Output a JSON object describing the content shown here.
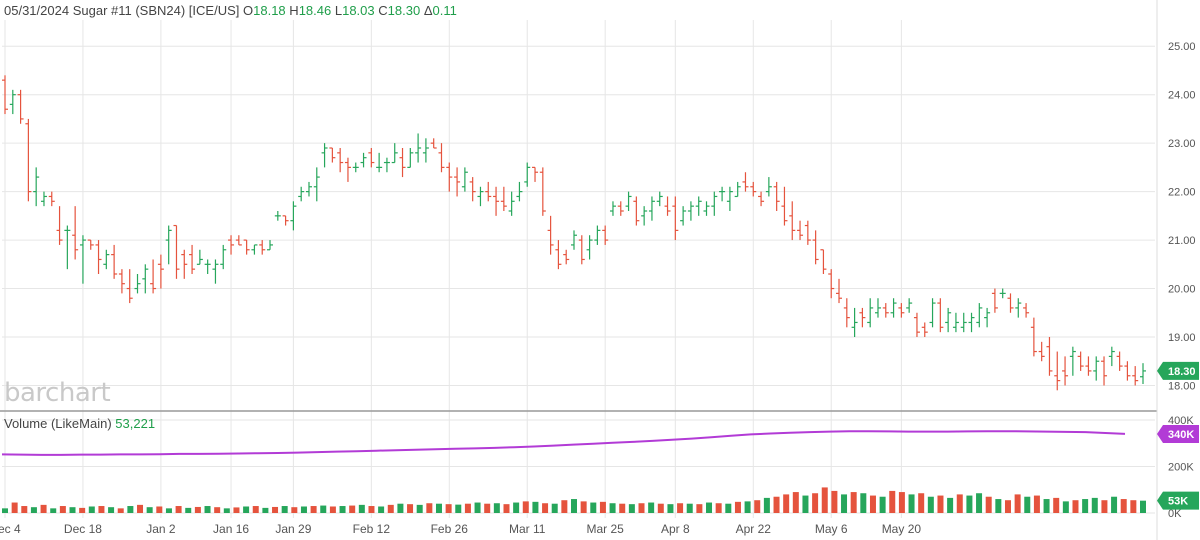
{
  "header": {
    "date": "05/31/2024",
    "symbol": "Sugar #11 (SBN24) [ICE/US]",
    "open_label": "O",
    "open": "18.18",
    "high_label": "H",
    "high": "18.46",
    "low_label": "L",
    "low": "18.03",
    "close_label": "C",
    "close": "18.30",
    "change_label": "Δ",
    "change": "0.11"
  },
  "volume_header": {
    "label": "Volume  (LikeMain)",
    "value": "53,221"
  },
  "logo": "barchart",
  "colors": {
    "up": "#26a65b",
    "down": "#e5533d",
    "line": "#b23bd6",
    "grid": "#e6e6e6"
  },
  "chart_data": {
    "type": "ohlc",
    "y_ticks": [
      "25.00",
      "24.00",
      "23.00",
      "22.00",
      "21.00",
      "20.00",
      "19.00",
      "18.00"
    ],
    "ylim": [
      17.7,
      25.5
    ],
    "price_badge": "18.30",
    "volume_ticks": [
      "400K",
      "200K",
      "0K"
    ],
    "volume_badge_line": "340K",
    "volume_badge_bar": "53K",
    "x_labels": [
      "Dec 4",
      "Dec 18",
      "Jan 2",
      "Jan 16",
      "Jan 29",
      "Feb 12",
      "Feb 26",
      "Mar 11",
      "Mar 25",
      "Apr 8",
      "Apr 22",
      "May 6",
      "May 20"
    ],
    "x_label_index": [
      0,
      10,
      20,
      29,
      37,
      47,
      57,
      67,
      77,
      86,
      96,
      106,
      115
    ],
    "ohlc": [
      [
        24.3,
        24.4,
        23.6,
        23.7
      ],
      [
        23.8,
        24.1,
        23.6,
        24.0
      ],
      [
        24.0,
        24.1,
        23.4,
        23.5
      ],
      [
        23.4,
        23.5,
        21.8,
        22.0
      ],
      [
        22.0,
        22.5,
        21.7,
        22.3
      ],
      [
        21.8,
        22.0,
        21.7,
        21.9
      ],
      [
        21.9,
        22.0,
        21.7,
        21.8
      ],
      [
        21.2,
        21.7,
        20.9,
        21.0
      ],
      [
        21.2,
        21.3,
        20.4,
        21.2
      ],
      [
        21.1,
        21.7,
        20.6,
        20.8
      ],
      [
        20.9,
        21.1,
        20.1,
        21.0
      ],
      [
        21.0,
        21.0,
        20.8,
        20.9
      ],
      [
        20.9,
        21.0,
        20.3,
        20.6
      ],
      [
        20.5,
        20.8,
        20.4,
        20.7
      ],
      [
        20.7,
        20.9,
        20.2,
        20.3
      ],
      [
        20.3,
        20.4,
        19.9,
        20.1
      ],
      [
        20.0,
        20.4,
        19.7,
        19.8
      ],
      [
        20.0,
        20.3,
        19.9,
        20.1
      ],
      [
        20.2,
        20.5,
        19.9,
        20.4
      ],
      [
        20.1,
        20.6,
        19.9,
        20.0
      ],
      [
        20.5,
        20.7,
        20.0,
        20.4
      ],
      [
        21.0,
        21.3,
        20.5,
        21.2
      ],
      [
        21.3,
        21.3,
        20.2,
        20.4
      ],
      [
        20.7,
        20.8,
        20.2,
        20.5
      ],
      [
        20.7,
        20.9,
        20.3,
        20.4
      ],
      [
        20.5,
        20.8,
        20.5,
        20.6
      ],
      [
        20.5,
        20.6,
        20.3,
        20.5
      ],
      [
        20.4,
        20.6,
        20.1,
        20.5
      ],
      [
        20.5,
        20.9,
        20.4,
        20.8
      ],
      [
        21.0,
        21.1,
        20.7,
        20.9
      ],
      [
        21.0,
        21.1,
        20.9,
        20.9
      ],
      [
        21.0,
        21.0,
        20.7,
        20.8
      ],
      [
        20.8,
        20.9,
        20.7,
        20.9
      ],
      [
        20.9,
        21.0,
        20.7,
        20.8
      ],
      [
        20.8,
        21.0,
        20.8,
        20.9
      ],
      [
        21.5,
        21.6,
        21.4,
        21.5
      ],
      [
        21.5,
        21.5,
        21.3,
        21.4
      ],
      [
        21.4,
        21.8,
        21.2,
        21.7
      ],
      [
        21.9,
        22.1,
        21.8,
        22.0
      ],
      [
        22.0,
        22.2,
        21.9,
        22.1
      ],
      [
        22.1,
        22.5,
        21.8,
        22.3
      ],
      [
        22.8,
        23.0,
        22.5,
        22.9
      ],
      [
        22.9,
        22.9,
        22.6,
        22.7
      ],
      [
        22.8,
        22.9,
        22.4,
        22.6
      ],
      [
        22.6,
        22.7,
        22.2,
        22.5
      ],
      [
        22.5,
        22.6,
        22.4,
        22.5
      ],
      [
        22.6,
        22.8,
        22.5,
        22.7
      ],
      [
        22.8,
        22.9,
        22.5,
        22.6
      ],
      [
        22.5,
        22.8,
        22.4,
        22.5
      ],
      [
        22.6,
        22.7,
        22.4,
        22.6
      ],
      [
        22.6,
        23.0,
        22.6,
        22.8
      ]
    ],
    "ohlc2": [
      [
        22.7,
        22.9,
        22.3,
        22.5
      ],
      [
        22.5,
        22.9,
        22.5,
        22.8
      ],
      [
        22.8,
        23.2,
        22.6,
        22.9
      ],
      [
        22.8,
        23.1,
        22.6,
        22.9
      ],
      [
        23.0,
        23.1,
        22.9,
        22.9
      ],
      [
        22.8,
        23.0,
        22.4,
        22.5
      ],
      [
        22.5,
        22.6,
        22.0,
        22.3
      ],
      [
        22.3,
        22.5,
        21.9,
        22.2
      ],
      [
        22.1,
        22.5,
        22.0,
        22.4
      ],
      [
        22.2,
        22.3,
        21.8,
        22.0
      ],
      [
        21.9,
        22.1,
        21.7,
        22.0
      ],
      [
        22.0,
        22.2,
        21.8,
        21.9
      ],
      [
        21.9,
        22.1,
        21.5,
        21.8
      ],
      [
        21.8,
        22.1,
        21.6,
        21.7
      ],
      [
        21.6,
        22.0,
        21.5,
        21.8
      ],
      [
        21.9,
        22.2,
        21.8,
        22.0
      ],
      [
        22.2,
        22.6,
        22.1,
        22.5
      ],
      [
        22.5,
        22.5,
        22.2,
        22.4
      ],
      [
        22.4,
        22.5,
        21.5,
        21.6
      ],
      [
        21.2,
        21.5,
        20.7,
        20.9
      ],
      [
        20.8,
        21.0,
        20.4,
        20.5
      ],
      [
        20.7,
        20.8,
        20.5,
        20.6
      ],
      [
        20.9,
        21.2,
        20.8,
        21.1
      ],
      [
        21.0,
        21.1,
        20.5,
        20.6
      ],
      [
        20.8,
        21.1,
        20.6,
        21.0
      ],
      [
        21.0,
        21.3,
        20.9,
        21.2
      ],
      [
        21.2,
        21.3,
        20.9,
        21.0
      ],
      [
        21.6,
        21.8,
        21.5,
        21.7
      ],
      [
        21.7,
        21.8,
        21.5,
        21.6
      ],
      [
        21.7,
        22.0,
        21.6,
        21.9
      ],
      [
        21.8,
        21.9,
        21.3,
        21.4
      ],
      [
        21.5,
        21.7,
        21.3,
        21.6
      ],
      [
        21.6,
        21.9,
        21.4,
        21.8
      ],
      [
        21.8,
        22.0,
        21.7,
        21.9
      ],
      [
        21.7,
        21.9,
        21.5,
        21.6
      ],
      [
        21.7,
        21.9,
        21.0,
        21.2
      ],
      [
        21.4,
        21.7,
        21.3,
        21.6
      ],
      [
        21.6,
        21.8,
        21.4,
        21.7
      ],
      [
        21.7,
        21.9,
        21.5,
        21.8
      ],
      [
        21.6,
        21.8,
        21.5,
        21.7
      ],
      [
        21.7,
        22.0,
        21.5,
        21.9
      ],
      [
        22.0,
        22.1,
        21.8,
        22.0
      ],
      [
        21.8,
        22.1,
        21.6,
        22.0
      ],
      [
        21.9,
        22.2,
        21.9,
        22.1
      ]
    ],
    "ohlc3": [
      [
        22.2,
        22.4,
        22.0,
        22.1
      ],
      [
        22.1,
        22.2,
        21.9,
        22.0
      ],
      [
        21.9,
        22.0,
        21.7,
        21.8
      ],
      [
        22.0,
        22.3,
        21.9,
        22.1
      ],
      [
        22.1,
        22.2,
        21.6,
        21.8
      ],
      [
        21.7,
        22.1,
        21.3,
        21.4
      ],
      [
        21.5,
        21.8,
        21.0,
        21.2
      ],
      [
        21.2,
        21.4,
        21.0,
        21.1
      ],
      [
        21.3,
        21.4,
        20.9,
        21.0
      ],
      [
        21.0,
        21.2,
        20.5,
        20.6
      ],
      [
        20.8,
        20.8,
        20.3,
        20.4
      ],
      [
        20.3,
        20.4,
        19.8,
        20.0
      ],
      [
        19.9,
        20.2,
        19.7,
        19.8
      ],
      [
        19.6,
        19.8,
        19.2,
        19.4
      ],
      [
        19.2,
        19.6,
        19.0,
        19.3
      ],
      [
        19.5,
        19.6,
        19.2,
        19.4
      ],
      [
        19.3,
        19.8,
        19.2,
        19.6
      ],
      [
        19.5,
        19.8,
        19.4,
        19.6
      ],
      [
        19.6,
        19.7,
        19.4,
        19.5
      ],
      [
        19.5,
        19.8,
        19.4,
        19.7
      ],
      [
        19.6,
        19.7,
        19.4,
        19.5
      ],
      [
        19.6,
        19.8,
        19.5,
        19.7
      ],
      [
        19.4,
        19.5,
        19.0,
        19.1
      ],
      [
        19.2,
        19.3,
        19.0,
        19.1
      ],
      [
        19.3,
        19.8,
        19.2,
        19.7
      ],
      [
        19.7,
        19.8,
        19.1,
        19.2
      ],
      [
        19.3,
        19.6,
        19.1,
        19.5
      ],
      [
        19.2,
        19.5,
        19.1,
        19.3
      ]
    ],
    "ohlc4": [
      [
        19.2,
        19.5,
        19.1,
        19.3
      ],
      [
        19.3,
        19.5,
        19.1,
        19.4
      ],
      [
        19.3,
        19.7,
        19.2,
        19.6
      ],
      [
        19.4,
        19.6,
        19.2,
        19.5
      ],
      [
        19.9,
        20.0,
        19.5,
        19.6
      ],
      [
        19.9,
        20.0,
        19.8,
        19.9
      ],
      [
        19.8,
        19.9,
        19.5,
        19.6
      ],
      [
        19.6,
        19.8,
        19.4,
        19.7
      ],
      [
        19.6,
        19.7,
        19.4,
        19.5
      ],
      [
        19.2,
        19.4,
        18.6,
        18.7
      ],
      [
        18.7,
        18.9,
        18.5,
        18.6
      ],
      [
        18.8,
        19.0,
        18.2,
        18.3
      ],
      [
        18.2,
        18.7,
        17.9,
        18.1
      ],
      [
        18.3,
        18.6,
        18.0,
        18.2
      ],
      [
        18.6,
        18.8,
        18.2,
        18.7
      ],
      [
        18.6,
        18.7,
        18.3,
        18.4
      ],
      [
        18.4,
        18.6,
        18.2,
        18.3
      ],
      [
        18.3,
        18.6,
        18.1,
        18.5
      ],
      [
        18.5,
        18.6,
        18.0,
        18.2
      ],
      [
        18.6,
        18.8,
        18.4,
        18.7
      ],
      [
        18.6,
        18.7,
        18.3,
        18.4
      ],
      [
        18.4,
        18.5,
        18.1,
        18.2
      ],
      [
        18.2,
        18.4,
        18.0,
        18.1
      ],
      [
        18.18,
        18.46,
        18.03,
        18.3
      ]
    ],
    "volume_line": [
      252,
      251,
      250,
      250,
      251,
      251,
      252,
      252,
      253,
      254,
      254,
      255,
      256,
      257,
      258,
      260,
      262,
      264,
      266,
      268,
      270,
      272,
      274,
      276,
      278,
      280,
      283,
      286,
      290,
      294,
      298,
      302,
      306,
      310,
      315,
      320,
      326,
      332,
      338,
      342,
      345,
      348,
      350,
      352,
      352,
      351,
      350,
      350,
      350,
      351,
      352,
      352,
      351,
      350,
      349,
      348,
      344,
      340
    ],
    "volume_bars": [
      [
        20,
        "u"
      ],
      [
        45,
        "d"
      ],
      [
        30,
        "d"
      ],
      [
        25,
        "u"
      ],
      [
        35,
        "d"
      ],
      [
        20,
        "u"
      ],
      [
        30,
        "d"
      ],
      [
        25,
        "u"
      ],
      [
        22,
        "d"
      ],
      [
        28,
        "u"
      ],
      [
        30,
        "d"
      ],
      [
        25,
        "u"
      ],
      [
        20,
        "d"
      ],
      [
        30,
        "u"
      ],
      [
        35,
        "d"
      ],
      [
        25,
        "u"
      ],
      [
        28,
        "d"
      ],
      [
        20,
        "u"
      ],
      [
        30,
        "d"
      ],
      [
        22,
        "u"
      ],
      [
        26,
        "d"
      ],
      [
        30,
        "u"
      ],
      [
        25,
        "d"
      ],
      [
        20,
        "u"
      ],
      [
        24,
        "d"
      ],
      [
        28,
        "u"
      ],
      [
        30,
        "d"
      ],
      [
        22,
        "u"
      ],
      [
        26,
        "d"
      ],
      [
        30,
        "u"
      ],
      [
        25,
        "d"
      ],
      [
        28,
        "u"
      ],
      [
        30,
        "d"
      ],
      [
        32,
        "u"
      ],
      [
        28,
        "d"
      ],
      [
        30,
        "u"
      ],
      [
        32,
        "d"
      ],
      [
        35,
        "u"
      ],
      [
        30,
        "d"
      ],
      [
        28,
        "u"
      ],
      [
        35,
        "d"
      ],
      [
        40,
        "u"
      ],
      [
        38,
        "d"
      ],
      [
        35,
        "u"
      ],
      [
        42,
        "d"
      ],
      [
        40,
        "u"
      ],
      [
        38,
        "d"
      ],
      [
        36,
        "u"
      ],
      [
        40,
        "d"
      ],
      [
        45,
        "u"
      ],
      [
        40,
        "d"
      ],
      [
        42,
        "u"
      ],
      [
        38,
        "d"
      ],
      [
        45,
        "u"
      ],
      [
        50,
        "d"
      ],
      [
        48,
        "u"
      ],
      [
        42,
        "d"
      ],
      [
        40,
        "u"
      ],
      [
        55,
        "d"
      ],
      [
        60,
        "u"
      ],
      [
        50,
        "d"
      ],
      [
        45,
        "u"
      ],
      [
        48,
        "d"
      ],
      [
        42,
        "u"
      ],
      [
        40,
        "d"
      ],
      [
        38,
        "u"
      ],
      [
        42,
        "d"
      ],
      [
        45,
        "u"
      ],
      [
        40,
        "d"
      ],
      [
        38,
        "u"
      ],
      [
        42,
        "d"
      ],
      [
        40,
        "u"
      ],
      [
        38,
        "d"
      ],
      [
        45,
        "u"
      ],
      [
        42,
        "d"
      ],
      [
        40,
        "u"
      ],
      [
        48,
        "d"
      ],
      [
        50,
        "u"
      ],
      [
        55,
        "d"
      ],
      [
        65,
        "u"
      ],
      [
        70,
        "d"
      ],
      [
        80,
        "d"
      ],
      [
        90,
        "d"
      ],
      [
        75,
        "u"
      ],
      [
        85,
        "d"
      ],
      [
        110,
        "d"
      ],
      [
        95,
        "d"
      ],
      [
        80,
        "u"
      ],
      [
        90,
        "d"
      ],
      [
        85,
        "u"
      ],
      [
        75,
        "d"
      ],
      [
        70,
        "u"
      ],
      [
        95,
        "d"
      ],
      [
        90,
        "d"
      ],
      [
        80,
        "u"
      ],
      [
        85,
        "d"
      ],
      [
        70,
        "u"
      ],
      [
        75,
        "d"
      ],
      [
        65,
        "u"
      ],
      [
        80,
        "d"
      ],
      [
        75,
        "u"
      ],
      [
        85,
        "u"
      ],
      [
        70,
        "d"
      ],
      [
        60,
        "u"
      ],
      [
        55,
        "d"
      ],
      [
        80,
        "d"
      ],
      [
        70,
        "u"
      ],
      [
        75,
        "d"
      ],
      [
        60,
        "u"
      ],
      [
        65,
        "d"
      ],
      [
        50,
        "u"
      ],
      [
        55,
        "d"
      ],
      [
        60,
        "u"
      ],
      [
        65,
        "u"
      ],
      [
        55,
        "d"
      ],
      [
        70,
        "u"
      ],
      [
        60,
        "d"
      ],
      [
        55,
        "d"
      ],
      [
        53,
        "u"
      ]
    ]
  }
}
